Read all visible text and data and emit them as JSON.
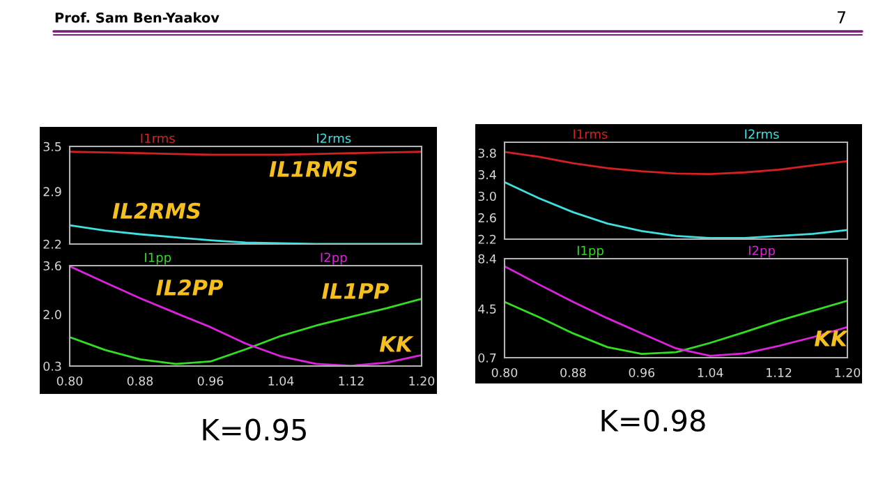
{
  "chart_data": [
    {
      "type": "line",
      "x": [
        0.8,
        0.84,
        0.88,
        0.92,
        0.96,
        1.0,
        1.04,
        1.08,
        1.12,
        1.16,
        1.2
      ],
      "xlim": [
        0.8,
        1.2
      ],
      "ylim": [
        2.2,
        3.5
      ],
      "yticks": [
        2.2,
        2.9,
        3.5
      ],
      "tick_labels": "y",
      "grid": false,
      "legend": "top",
      "series": [
        {
          "name": "I1rms",
          "color": "#d42020",
          "values": [
            3.43,
            3.42,
            3.41,
            3.4,
            3.39,
            3.39,
            3.39,
            3.4,
            3.41,
            3.42,
            3.43
          ]
        },
        {
          "name": "I2rms",
          "color": "#40e0e0",
          "values": [
            2.45,
            2.38,
            2.33,
            2.29,
            2.25,
            2.22,
            2.21,
            2.2,
            2.2,
            2.2,
            2.2
          ]
        }
      ],
      "annotations": [
        "Prof. Sam Ben-Yaakov",
        "7",
        "IL1RMS",
        "IL2RMS"
      ]
    },
    {
      "type": "line",
      "x": [
        0.8,
        0.84,
        0.88,
        0.92,
        0.96,
        1.0,
        1.04,
        1.08,
        1.12,
        1.16,
        1.2
      ],
      "xlim": [
        0.8,
        1.2
      ],
      "xticks": [
        {
          "value": 0.8,
          "label": "0.80"
        },
        {
          "value": 0.88,
          "label": "0.88"
        },
        {
          "value": 0.96,
          "label": "0.96"
        },
        {
          "value": 1.04,
          "label": "1.04"
        },
        {
          "value": 1.12,
          "label": "1.12"
        },
        {
          "value": 1.2,
          "label": "1.20"
        }
      ],
      "ylim": [
        0.3,
        3.6
      ],
      "yticks": [
        0.3,
        {
          "value": 2.0,
          "label": "2.0"
        },
        3.6
      ],
      "grid": false,
      "legend": "top",
      "series": [
        {
          "name": "I1pp",
          "color": "#33dd22",
          "values": [
            1.25,
            0.83,
            0.52,
            0.37,
            0.45,
            0.85,
            1.29,
            1.63,
            1.92,
            2.2,
            2.51
          ]
        },
        {
          "name": "I2pp",
          "color": "#dd22dd",
          "values": [
            3.58,
            3.05,
            2.53,
            2.05,
            1.58,
            1.04,
            0.62,
            0.37,
            0.31,
            0.41,
            0.66
          ]
        }
      ],
      "annotations": [
        "IL2PP",
        "IL1PP",
        "KK",
        "K=0.95"
      ]
    },
    {
      "type": "line",
      "x": [
        0.8,
        0.84,
        0.88,
        0.92,
        0.96,
        1.0,
        1.04,
        1.08,
        1.12,
        1.16,
        1.2
      ],
      "xlim": [
        0.8,
        1.2
      ],
      "ylim": [
        2.2,
        4.0
      ],
      "yticks": [
        2.2,
        2.6,
        {
          "value": 3.0,
          "label": "3.0"
        },
        3.4,
        3.8
      ],
      "tick_labels": "y",
      "grid": false,
      "legend": "top",
      "series": [
        {
          "name": "I1rms",
          "color": "#d42020",
          "values": [
            3.82,
            3.73,
            3.61,
            3.52,
            3.46,
            3.42,
            3.41,
            3.44,
            3.49,
            3.57,
            3.65
          ]
        },
        {
          "name": "I2rms",
          "color": "#40e0e0",
          "values": [
            3.26,
            2.96,
            2.7,
            2.49,
            2.35,
            2.26,
            2.22,
            2.22,
            2.26,
            2.3,
            2.37
          ]
        }
      ]
    },
    {
      "type": "line",
      "x": [
        0.8,
        0.84,
        0.88,
        0.92,
        0.96,
        1.0,
        1.04,
        1.08,
        1.12,
        1.16,
        1.2
      ],
      "xlim": [
        0.8,
        1.2
      ],
      "xticks": [
        {
          "value": 0.8,
          "label": "0.80"
        },
        {
          "value": 0.88,
          "label": "0.88"
        },
        {
          "value": 0.96,
          "label": "0.96"
        },
        {
          "value": 1.04,
          "label": "1.04"
        },
        {
          "value": 1.12,
          "label": "1.12"
        },
        {
          "value": 1.2,
          "label": "1.20"
        }
      ],
      "ylim": [
        0.7,
        8.4
      ],
      "yticks": [
        0.7,
        4.5,
        8.4
      ],
      "grid": false,
      "legend": "top",
      "series": [
        {
          "name": "I1pp",
          "color": "#33dd22",
          "values": [
            5.04,
            3.86,
            2.59,
            1.52,
            0.99,
            1.13,
            1.85,
            2.69,
            3.57,
            4.35,
            5.13
          ]
        },
        {
          "name": "I2pp",
          "color": "#dd22dd",
          "values": [
            7.81,
            6.4,
            5.04,
            3.77,
            2.59,
            1.42,
            0.84,
            1.03,
            1.62,
            2.3,
            3.08
          ]
        }
      ],
      "annotations": [
        "KK",
        "K=0.98"
      ]
    }
  ]
}
